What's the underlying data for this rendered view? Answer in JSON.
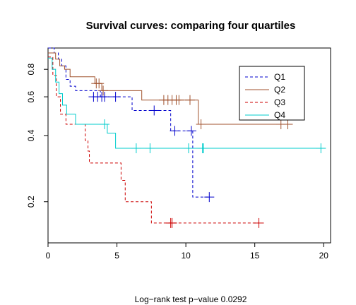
{
  "chart_data": {
    "type": "line",
    "step": true,
    "title": "Survival curves: comparing four quartiles",
    "subtitle_below": "Log−rank test p−value  0.0292",
    "xlabel": "",
    "ylabel": "",
    "xlim": [
      0,
      20.5
    ],
    "ylim": [
      0.13,
      1.0
    ],
    "yscale": "log",
    "xticks": [
      0,
      5,
      10,
      15,
      20
    ],
    "yticks": [
      0.2,
      0.4,
      0.6,
      0.8
    ],
    "grid": false,
    "legend_position": "top-right",
    "series": [
      {
        "name": "Q1",
        "color": "#0000cc",
        "dash": "4,3",
        "steps": [
          [
            0,
            1.0
          ],
          [
            0.45,
            0.95
          ],
          [
            0.75,
            0.89
          ],
          [
            1.0,
            0.83
          ],
          [
            1.3,
            0.72
          ],
          [
            1.6,
            0.67
          ],
          [
            2.0,
            0.64
          ],
          [
            3.8,
            0.6
          ],
          [
            6.1,
            0.52
          ],
          [
            8.9,
            0.42
          ],
          [
            10.5,
            0.21
          ],
          [
            11.7,
            0.21
          ]
        ],
        "censored": [
          [
            3.3,
            0.6
          ],
          [
            3.6,
            0.6
          ],
          [
            3.9,
            0.6
          ],
          [
            4.1,
            0.6
          ],
          [
            4.9,
            0.6
          ],
          [
            7.7,
            0.52
          ],
          [
            9.2,
            0.42
          ],
          [
            10.4,
            0.42
          ],
          [
            11.7,
            0.21
          ]
        ]
      },
      {
        "name": "Q2",
        "color": "#a0522d",
        "dash": "",
        "steps": [
          [
            0,
            0.95
          ],
          [
            0.55,
            0.89
          ],
          [
            0.85,
            0.83
          ],
          [
            1.2,
            0.8
          ],
          [
            1.6,
            0.74
          ],
          [
            3.4,
            0.69
          ],
          [
            3.9,
            0.64
          ],
          [
            6.8,
            0.58
          ],
          [
            10.9,
            0.45
          ],
          [
            17.5,
            0.45
          ]
        ],
        "censored": [
          [
            3.5,
            0.69
          ],
          [
            3.7,
            0.69
          ],
          [
            4.0,
            0.64
          ],
          [
            8.4,
            0.58
          ],
          [
            8.7,
            0.58
          ],
          [
            9.0,
            0.58
          ],
          [
            9.3,
            0.58
          ],
          [
            9.5,
            0.58
          ],
          [
            10.3,
            0.58
          ],
          [
            11.1,
            0.45
          ],
          [
            16.9,
            0.45
          ],
          [
            17.4,
            0.45
          ]
        ]
      },
      {
        "name": "Q3",
        "color": "#cc0000",
        "dash": "4,3",
        "steps": [
          [
            0,
            0.91
          ],
          [
            0.35,
            0.75
          ],
          [
            0.6,
            0.6
          ],
          [
            0.9,
            0.5
          ],
          [
            1.3,
            0.45
          ],
          [
            2.7,
            0.38
          ],
          [
            2.9,
            0.34
          ],
          [
            3.0,
            0.3
          ],
          [
            5.3,
            0.25
          ],
          [
            5.6,
            0.2
          ],
          [
            7.5,
            0.16
          ],
          [
            15.3,
            0.16
          ]
        ],
        "censored": [
          [
            8.9,
            0.16
          ],
          [
            9.0,
            0.16
          ],
          [
            15.3,
            0.16
          ]
        ]
      },
      {
        "name": "Q4",
        "color": "#00cccc",
        "dash": "",
        "steps": [
          [
            0,
            0.9
          ],
          [
            0.3,
            0.8
          ],
          [
            0.55,
            0.7
          ],
          [
            0.8,
            0.62
          ],
          [
            1.05,
            0.55
          ],
          [
            1.35,
            0.5
          ],
          [
            2.0,
            0.45
          ],
          [
            4.3,
            0.41
          ],
          [
            4.9,
            0.35
          ],
          [
            20.0,
            0.35
          ]
        ],
        "censored": [
          [
            4.1,
            0.45
          ],
          [
            6.4,
            0.35
          ],
          [
            7.4,
            0.35
          ],
          [
            10.2,
            0.35
          ],
          [
            11.2,
            0.35
          ],
          [
            11.3,
            0.35
          ],
          [
            19.8,
            0.35
          ]
        ]
      }
    ]
  }
}
